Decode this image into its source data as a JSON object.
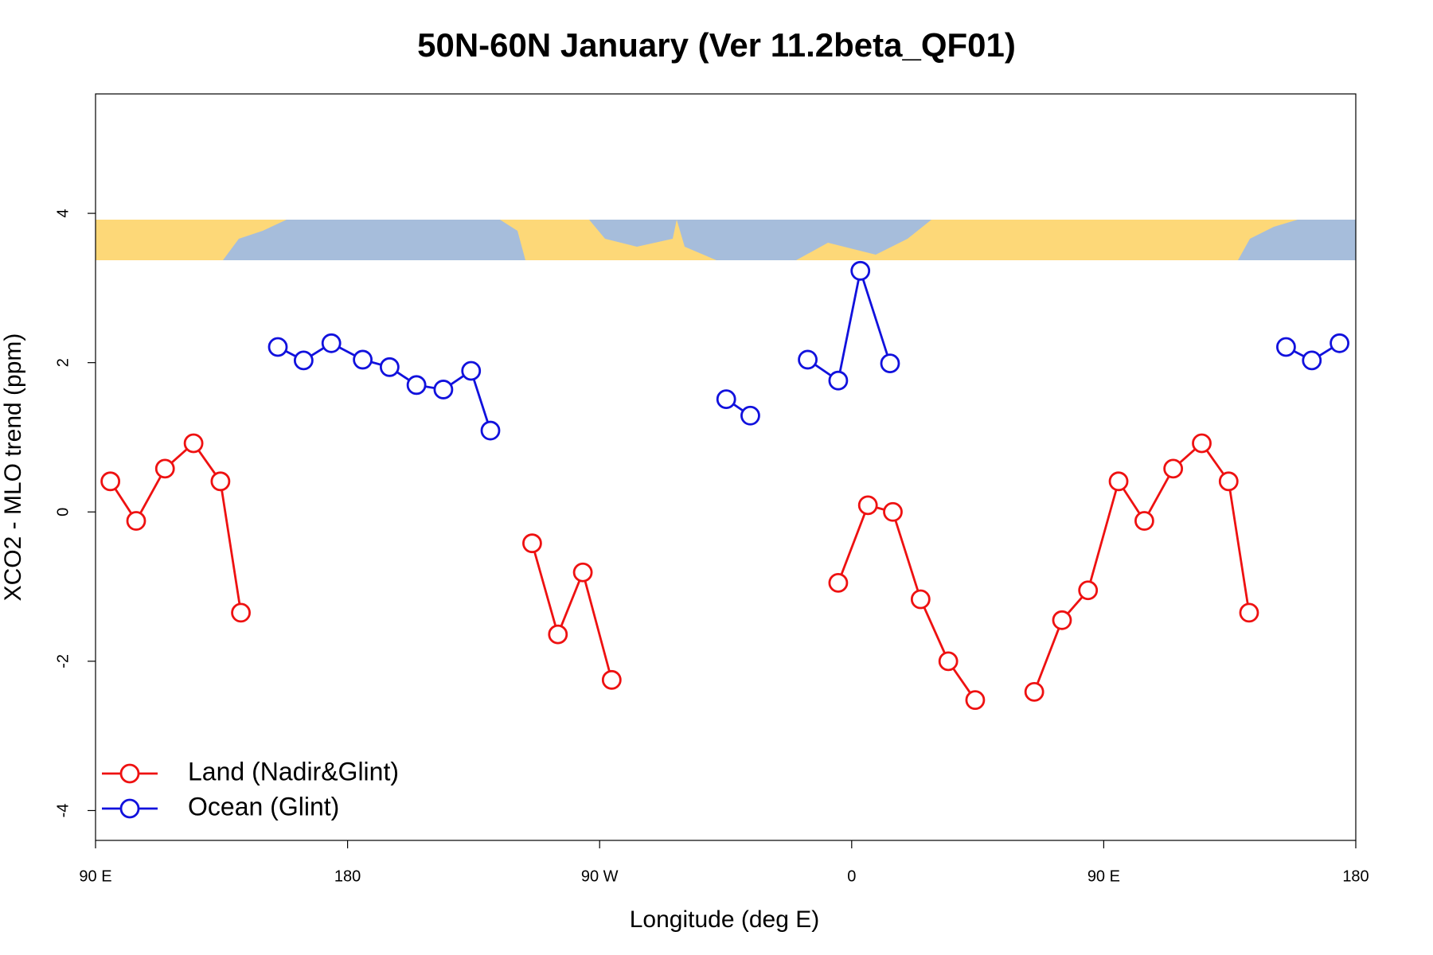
{
  "chart_data": {
    "type": "line",
    "title": "50N-60N January (Ver 11.2beta_QF01)",
    "xlabel": "Longitude (deg E)",
    "ylabel": "XCO2 - MLO trend (ppm)",
    "xlim": [
      90,
      540
    ],
    "xticks": [
      {
        "value": 90,
        "label": "90 E"
      },
      180,
      {
        "value": 270,
        "label": "90 W"
      },
      {
        "value": 360,
        "label": "0"
      },
      {
        "value": 450,
        "label": "90 E"
      },
      {
        "value": 540,
        "label": "180"
      }
    ],
    "ylim": [
      -4.4,
      5.6
    ],
    "yticks": [
      -4,
      -2,
      0,
      2,
      4
    ],
    "legend": "bottom-left",
    "series": [
      {
        "name": "Land (Nadir&Glint)",
        "color": "#ee1111",
        "x": [
          95.3,
          104.5,
          114.8,
          125,
          134.6,
          141.9,
          null,
          245.9,
          255.1,
          264,
          274.3,
          null,
          355.2,
          365.8,
          374.7,
          384.6,
          394.5,
          404.1,
          null,
          425.2,
          435.1,
          444.4,
          455.3,
          464.5,
          474.8,
          485,
          494.6,
          501.9
        ],
        "values": [
          0.41,
          -0.12,
          0.58,
          0.92,
          0.41,
          -1.35,
          null,
          -0.42,
          -1.64,
          -0.81,
          -2.25,
          null,
          -0.95,
          0.09,
          0,
          -1.17,
          -2.0,
          -2.52,
          null,
          -2.41,
          -1.45,
          -1.05,
          0.41,
          -0.12,
          0.58,
          0.92,
          0.41,
          -1.35
        ]
      },
      {
        "name": "Ocean (Glint)",
        "color": "#1111dd",
        "x": [
          155.1,
          164.3,
          174.2,
          185.4,
          195,
          204.6,
          214.2,
          224.1,
          231,
          null,
          315.2,
          323.8,
          null,
          344.3,
          355.2,
          363.1,
          373.7,
          null,
          515.1,
          524.3,
          534.2
        ],
        "values": [
          2.21,
          2.03,
          2.26,
          2.04,
          1.94,
          1.7,
          1.64,
          1.89,
          1.09,
          null,
          1.51,
          1.29,
          null,
          2.04,
          1.76,
          3.23,
          1.99,
          null,
          2.21,
          2.03,
          2.26
        ]
      }
    ]
  }
}
